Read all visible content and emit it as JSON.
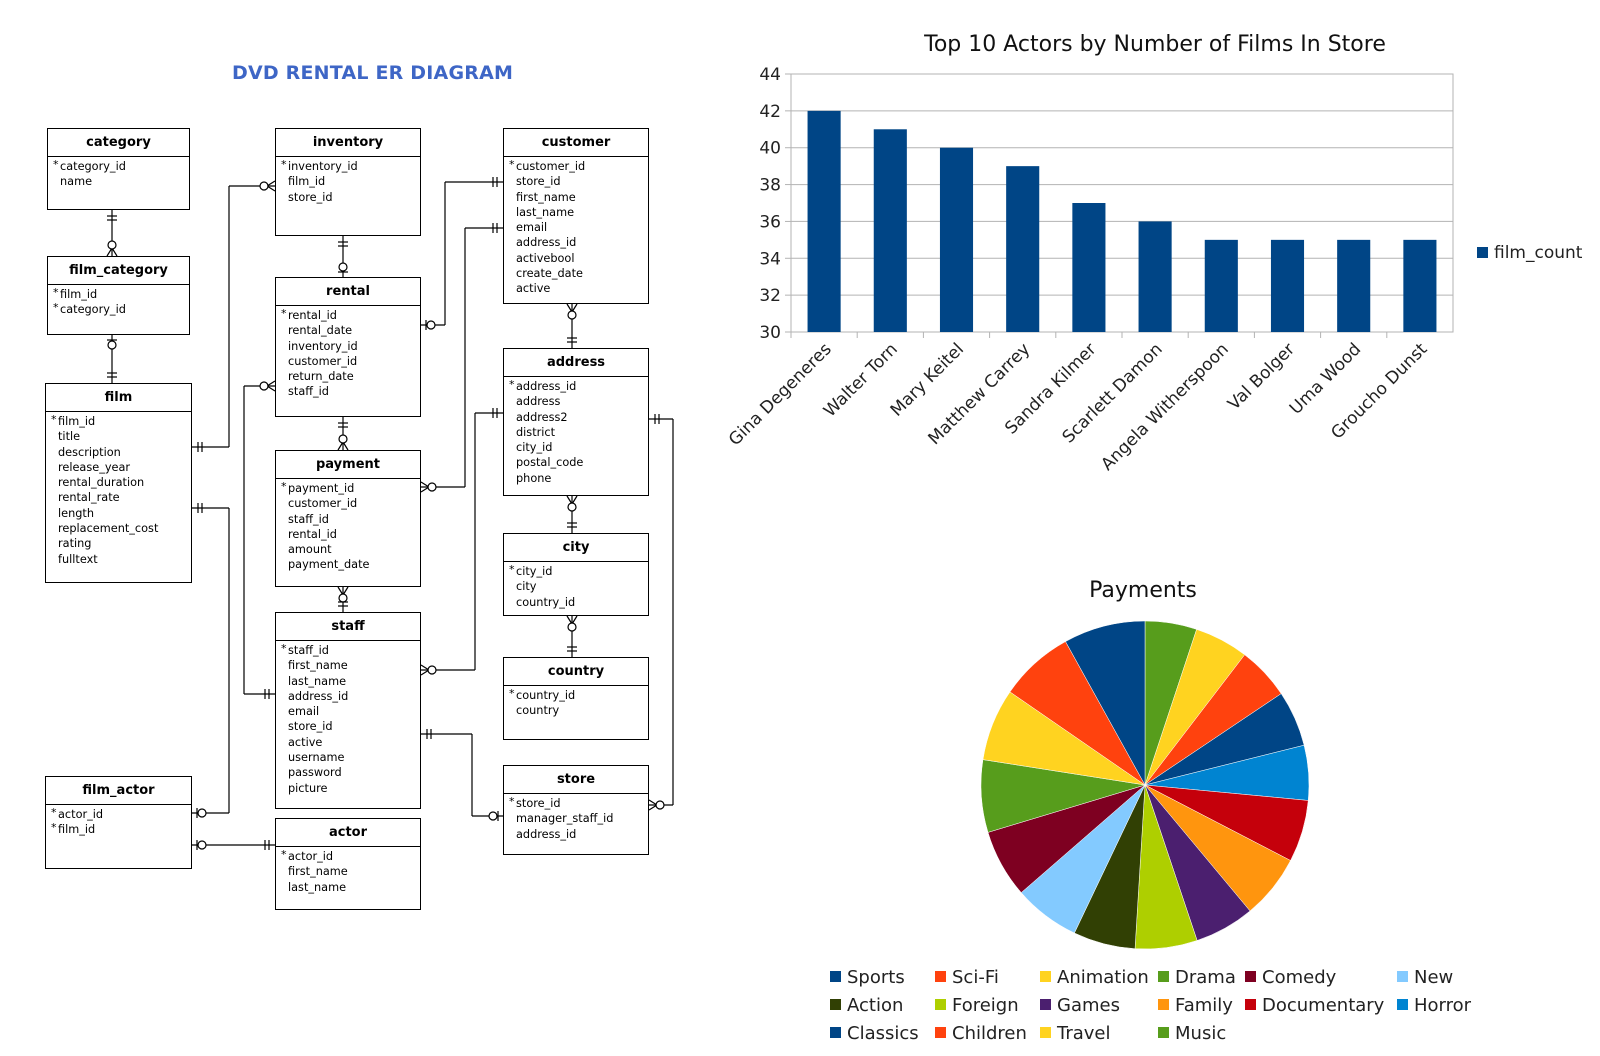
{
  "er_diagram": {
    "title": "DVD RENTAL ER DIAGRAM",
    "entities": {
      "category": {
        "name": "category",
        "attributes": [
          "category_id",
          "name"
        ],
        "pk": [
          0
        ]
      },
      "film_category": {
        "name": "film_category",
        "attributes": [
          "film_id",
          "category_id"
        ],
        "pk": [
          0,
          1
        ]
      },
      "film": {
        "name": "film",
        "attributes": [
          "film_id",
          "title",
          "description",
          "release_year",
          "rental_duration",
          "rental_rate",
          "length",
          "replacement_cost",
          "rating",
          "fulltext"
        ],
        "pk": [
          0
        ]
      },
      "film_actor": {
        "name": "film_actor",
        "attributes": [
          "actor_id",
          "film_id"
        ],
        "pk": [
          0,
          1
        ]
      },
      "inventory": {
        "name": "inventory",
        "attributes": [
          "inventory_id",
          "film_id",
          "store_id"
        ],
        "pk": [
          0
        ]
      },
      "rental": {
        "name": "rental",
        "attributes": [
          "rental_id",
          "rental_date",
          "inventory_id",
          "customer_id",
          "return_date",
          "staff_id"
        ],
        "pk": [
          0
        ]
      },
      "payment": {
        "name": "payment",
        "attributes": [
          "payment_id",
          "customer_id",
          "staff_id",
          "rental_id",
          "amount",
          "payment_date"
        ],
        "pk": [
          0
        ]
      },
      "staff": {
        "name": "staff",
        "attributes": [
          "staff_id",
          "first_name",
          "last_name",
          "address_id",
          "email",
          "store_id",
          "active",
          "username",
          "password",
          "picture"
        ],
        "pk": [
          0
        ]
      },
      "actor": {
        "name": "actor",
        "attributes": [
          "actor_id",
          "first_name",
          "last_name"
        ],
        "pk": [
          0
        ]
      },
      "customer": {
        "name": "customer",
        "attributes": [
          "customer_id",
          "store_id",
          "first_name",
          "last_name",
          "email",
          "address_id",
          "activebool",
          "create_date",
          "active"
        ],
        "pk": [
          0
        ]
      },
      "address": {
        "name": "address",
        "attributes": [
          "address_id",
          "address",
          "address2",
          "district",
          "city_id",
          "postal_code",
          "phone"
        ],
        "pk": [
          0
        ]
      },
      "city": {
        "name": "city",
        "attributes": [
          "city_id",
          "city",
          "country_id"
        ],
        "pk": [
          0
        ]
      },
      "country": {
        "name": "country",
        "attributes": [
          "country_id",
          "country"
        ],
        "pk": [
          0
        ]
      },
      "store": {
        "name": "store",
        "attributes": [
          "store_id",
          "manager_staff_id",
          "address_id"
        ],
        "pk": [
          0
        ]
      }
    }
  },
  "chart_data": [
    {
      "type": "bar",
      "title": "Top 10 Actors by Number of Films In Store",
      "categories": [
        "Gina Degeneres",
        "Walter Torn",
        "Mary Keitel",
        "Matthew Carrey",
        "Sandra Kilmer",
        "Scarlett Damon",
        "Angela Witherspoon",
        "Val Bolger",
        "Uma Wood",
        "Groucho Dunst"
      ],
      "series": [
        {
          "name": "film_count",
          "values": [
            42,
            41,
            40,
            39,
            37,
            36,
            35,
            35,
            35,
            35
          ],
          "color": "#004586"
        }
      ],
      "ylim": [
        30,
        44
      ],
      "yticks": [
        30,
        32,
        34,
        36,
        38,
        40,
        42,
        44
      ],
      "grid": true,
      "legend": "right"
    },
    {
      "type": "pie",
      "title": "Payments",
      "categories": [
        "Sports",
        "Sci-Fi",
        "Animation",
        "Drama",
        "Comedy",
        "New",
        "Action",
        "Foreign",
        "Games",
        "Family",
        "Documentary",
        "Horror",
        "Classics",
        "Children",
        "Travel",
        "Music"
      ],
      "colors": [
        "#004586",
        "#ff420e",
        "#ffd320",
        "#579d1c",
        "#7e0021",
        "#83caff",
        "#314004",
        "#aecf00",
        "#4b1f6f",
        "#ff950e",
        "#c5000b",
        "#0084d1",
        "#004586",
        "#ff420e",
        "#ffd320",
        "#579d1c"
      ],
      "slice_order": [
        15,
        7,
        12,
        6,
        5,
        13,
        2,
        10,
        11,
        4,
        8,
        1,
        14,
        3,
        9,
        0
      ],
      "slice_colors": [
        "#579d1c",
        "#ffd320",
        "#ff420e",
        "#004586",
        "#0084d1",
        "#c5000b",
        "#ff950e",
        "#4b1f6f",
        "#aecf00",
        "#314004",
        "#83caff",
        "#7e0021",
        "#579d1c",
        "#ffd320",
        "#ff420e",
        "#004586"
      ],
      "values": [
        5.0,
        5.2,
        5.1,
        5.4,
        5.3,
        6.0,
        6.2,
        5.8,
        6.0,
        6.0,
        6.4,
        6.6,
        7.0,
        7.0,
        7.2,
        7.9
      ],
      "legend": "bottom"
    }
  ]
}
